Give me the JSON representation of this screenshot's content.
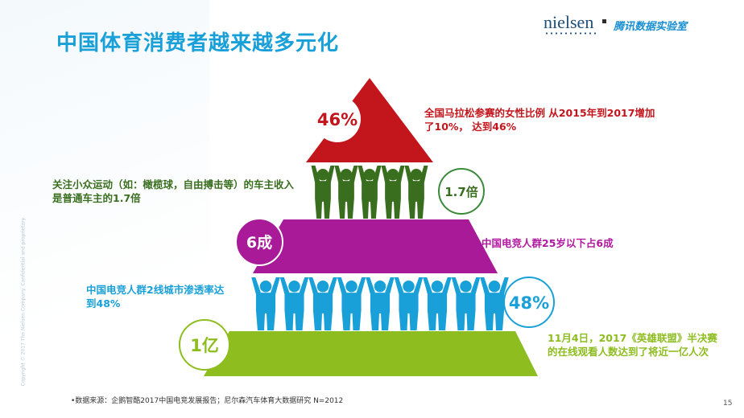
{
  "title": "中国体育消费者越来越多元化",
  "brand": {
    "nielsen": "nielsen",
    "tencent": "腾讯数据实验室"
  },
  "side_note": "Copyright © 2017 The Nielsen Company. Confidential and proprietary.",
  "pyramid": {
    "top": {
      "value": "46%",
      "color": "#c3151c",
      "description": "全国马拉松参赛的女性比例 从2015年到2017增加了10%， 达到46%"
    },
    "tier2": {
      "value": "6成",
      "color": "#a81a98",
      "description": "中国电竞人群25岁以下占6成"
    },
    "base": {
      "value": "1亿",
      "color": "#8dbd1f",
      "description": "11月4日，2017《英雄联盟》半决赛的在线观看人数达到了将近一亿人次"
    },
    "people_row1": {
      "value": "1.7倍",
      "color": "#3a6e1f",
      "description": "关注小众运动（如：橄榄球，自由搏击等）的车主收入是普通车主的1.7倍"
    },
    "people_row2": {
      "value": "48%",
      "color": "#1aa0d8",
      "description": "中国电竞人群2线城市渗透率达到48%"
    }
  },
  "source": "•数据来源：企鹅智酷2017中国电竞发展报告；尼尔森汽车体育大数据研究 N=2012",
  "page_number": "15"
}
